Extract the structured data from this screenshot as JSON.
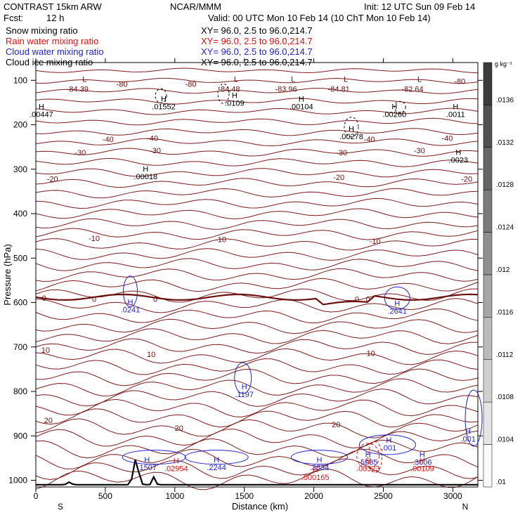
{
  "header": {
    "title": "CONTRAST 15km ARW",
    "org": "NCAR/MMM",
    "init": "Init: 12 UTC Sun 09 Feb 14",
    "fcst_label": "Fcst:",
    "fcst_value": "12 h",
    "valid": "Valid: 00 UTC Mon 10 Feb 14 (10 ChT Mon 10 Feb 14)"
  },
  "fields": [
    {
      "name": "Snow mixing ratio",
      "color": "#000000",
      "xy": "XY=  96.0,  2.5 to  96.0,214.7"
    },
    {
      "name": "Rain water mixing ratio",
      "color": "#dd1111",
      "xy": "XY=  96.0,  2.5 to  96.0,214.7"
    },
    {
      "name": "Cloud water mixing ratio",
      "color": "#2222cc",
      "xy": "XY=  96.0,  2.5 to  96.0,214.7"
    },
    {
      "name": "Cloud ice mixing ratio",
      "color": "#000000",
      "xy": "XY=  96.0,  2.5 to  96.0,214.7"
    }
  ],
  "colorbar": {
    "unit": "g kg⁻¹",
    "ticks": [
      ".0136",
      ".0132",
      ".0128",
      ".0124",
      ".012",
      ".0116",
      ".0112",
      ".0108",
      ".0104",
      ".01"
    ]
  },
  "chart_data": {
    "type": "contour",
    "xlabel": "Distance (km)",
    "ylabel": "Pressure (hPa)",
    "xlim": [
      0,
      3180
    ],
    "ylim": [
      1015,
      60
    ],
    "x_ticks": [
      0,
      500,
      1000,
      1500,
      2000,
      2500,
      3000
    ],
    "y_ticks": [
      100,
      200,
      300,
      400,
      500,
      600,
      700,
      800,
      900,
      1000
    ],
    "x_end_labels": {
      "left": "S",
      "right": "N"
    },
    "temperature_contours": [
      {
        "level": "-80",
        "labels": [
          {
            "x": 620,
            "p": 108
          },
          {
            "x": 1115,
            "p": 108
          },
          {
            "x": 3050,
            "p": 102
          }
        ]
      },
      {
        "level": "-40",
        "labels": [
          {
            "x": 520,
            "p": 232
          },
          {
            "x": 840,
            "p": 230
          },
          {
            "x": 2400,
            "p": 232
          },
          {
            "x": 2960,
            "p": 230
          }
        ]
      },
      {
        "level": "-30",
        "labels": [
          {
            "x": 320,
            "p": 262
          },
          {
            "x": 860,
            "p": 258
          },
          {
            "x": 2200,
            "p": 262
          },
          {
            "x": 2760,
            "p": 258
          }
        ]
      },
      {
        "level": "-20",
        "labels": [
          {
            "x": 120,
            "p": 322
          },
          {
            "x": 2180,
            "p": 318
          },
          {
            "x": 3100,
            "p": 322
          }
        ]
      },
      {
        "level": "-10",
        "labels": [
          {
            "x": 420,
            "p": 455
          },
          {
            "x": 1330,
            "p": 458
          },
          {
            "x": 2440,
            "p": 462
          }
        ]
      },
      {
        "level": "0",
        "labels": [
          {
            "x": 60,
            "p": 590
          },
          {
            "x": 420,
            "p": 592
          },
          {
            "x": 860,
            "p": 592
          },
          {
            "x": 2310,
            "p": 592
          },
          {
            "x": 2390,
            "p": 592
          }
        ]
      },
      {
        "level": "10",
        "labels": [
          {
            "x": 70,
            "p": 707
          },
          {
            "x": 830,
            "p": 716
          },
          {
            "x": 2410,
            "p": 714
          }
        ]
      },
      {
        "level": "20",
        "labels": [
          {
            "x": 90,
            "p": 865
          },
          {
            "x": 1030,
            "p": 882
          },
          {
            "x": 2160,
            "p": 874
          }
        ]
      }
    ],
    "minima": [
      {
        "x": 300,
        "p": 88,
        "value": "-84.39"
      },
      {
        "x": 1390,
        "p": 88,
        "value": "-84.48"
      },
      {
        "x": 1800,
        "p": 88,
        "value": "-83.96"
      },
      {
        "x": 2180,
        "p": 88,
        "value": "-84.81"
      },
      {
        "x": 2710,
        "p": 88,
        "value": "-82.64"
      }
    ],
    "snow_maxima": [
      {
        "x": 40,
        "p": 165,
        "value": ".00447"
      },
      {
        "x": 920,
        "p": 148,
        "value": ".01552"
      },
      {
        "x": 1430,
        "p": 140,
        "value": ".0109"
      },
      {
        "x": 1910,
        "p": 148,
        "value": ".00104"
      },
      {
        "x": 2580,
        "p": 165,
        "value": ".00260"
      },
      {
        "x": 3020,
        "p": 165,
        "value": ".0011"
      },
      {
        "x": 2270,
        "p": 215,
        "value": ".00278"
      },
      {
        "x": 3040,
        "p": 268,
        "value": ".0023"
      },
      {
        "x": 790,
        "p": 305,
        "value": ".00018"
      }
    ],
    "cloud_water_maxima": [
      {
        "x": 680,
        "p": 605,
        "value": ".0241"
      },
      {
        "x": 2600,
        "p": 608,
        "value": ".2641"
      },
      {
        "x": 1500,
        "p": 795,
        "value": ".1197"
      },
      {
        "x": 3110,
        "p": 896,
        "value": ".001"
      },
      {
        "x": 2540,
        "p": 915,
        "value": ".001"
      },
      {
        "x": 800,
        "p": 960,
        "value": ".1507"
      },
      {
        "x": 1300,
        "p": 960,
        "value": ".2244"
      },
      {
        "x": 2040,
        "p": 960,
        "value": ".3634"
      },
      {
        "x": 2390,
        "p": 948,
        "value": ".5985"
      },
      {
        "x": 2780,
        "p": 948,
        "value": ".3006"
      }
    ],
    "rain_maxima": [
      {
        "x": 1010,
        "p": 962,
        "value": ".02954"
      },
      {
        "x": 2390,
        "p": 962,
        "value": ".00323"
      },
      {
        "x": 2780,
        "p": 962,
        "value": ".00109"
      },
      {
        "x": 2010,
        "p": 982,
        "value": ".000165"
      }
    ]
  }
}
